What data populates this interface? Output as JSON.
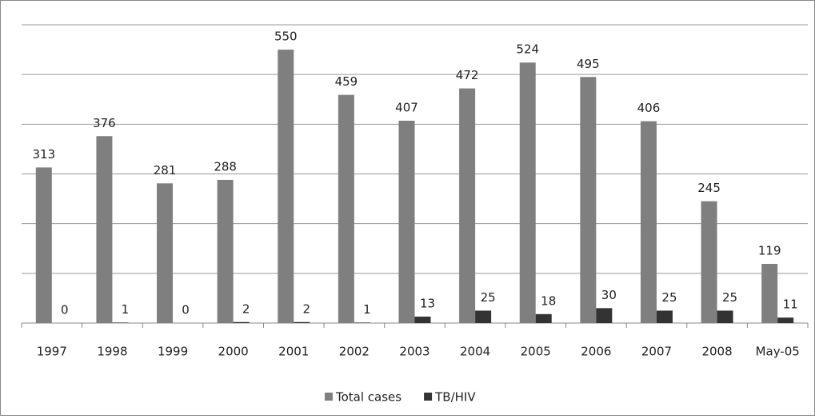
{
  "chart_data": {
    "type": "bar",
    "categories": [
      "1997",
      "1998",
      "1999",
      "2000",
      "2001",
      "2002",
      "2003",
      "2004",
      "2005",
      "2006",
      "2007",
      "2008",
      "May-05"
    ],
    "series": [
      {
        "name": "Total cases",
        "color": "#7f7f7f",
        "values": [
          313,
          376,
          281,
          288,
          550,
          459,
          407,
          472,
          524,
          495,
          406,
          245,
          119
        ]
      },
      {
        "name": "TB/HIV",
        "color": "#333333",
        "values": [
          0,
          1,
          0,
          2,
          2,
          1,
          13,
          25,
          18,
          30,
          25,
          25,
          11
        ]
      }
    ],
    "ylim": [
      0,
      600
    ],
    "yticks": [
      0,
      100,
      200,
      300,
      400,
      500,
      600
    ],
    "grid": true,
    "legend": "bottom"
  }
}
